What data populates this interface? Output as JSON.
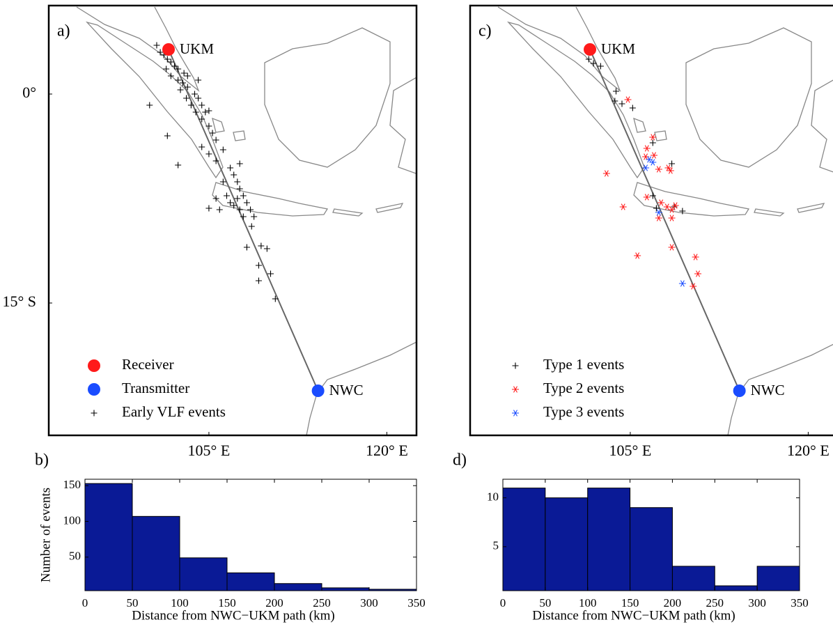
{
  "chart_data": [
    {
      "type": "map",
      "panel_label": "a)",
      "xlim": [
        91.5,
        122.5
      ],
      "ylim": [
        -24.5,
        6.35
      ],
      "xticks": [
        {
          "value": 105,
          "label": "105° E"
        },
        {
          "value": 120,
          "label": "120° E"
        }
      ],
      "yticks": [
        {
          "value": 0,
          "label": "0°"
        },
        {
          "value": -15,
          "label": "15° S"
        }
      ],
      "legend": "lower left",
      "series": [
        {
          "name": "Receiver",
          "marker": "circle",
          "color": "#ff1a1a",
          "labels": [
            "UKM"
          ],
          "x": [
            101.6
          ],
          "y": [
            3.2
          ]
        },
        {
          "name": "Transmitter",
          "marker": "circle",
          "color": "#1a4cff",
          "labels": [
            "NWC"
          ],
          "x": [
            114.2
          ],
          "y": [
            -21.3
          ]
        },
        {
          "name": "Early VLF events",
          "marker": "plus",
          "color": "#000000",
          "x": [
            100.6,
            100.9,
            101.2,
            101.5,
            101.8,
            102.1,
            102.4,
            102.9,
            103.2,
            101.4,
            101.8,
            102.4,
            102.8,
            103.2,
            103.8,
            104.1,
            104.4,
            104.7,
            102.6,
            103.1,
            103.5,
            103.9,
            104.4,
            105.0,
            105.3,
            105.6,
            101.5,
            102.4,
            100.0,
            104.4,
            105.0,
            105.6,
            106.2,
            106.8,
            107.1,
            107.4,
            107.6,
            106.2,
            106.5,
            106.8,
            107.4,
            107.9,
            108.2,
            108.5,
            107.6,
            107.1,
            105.9,
            105.0,
            105.6,
            108.8,
            108.6,
            108.2,
            109.4,
            109.9,
            109.2,
            110.2,
            109.2,
            110.6,
            107.9,
            104.1,
            105.0,
            107.6
          ],
          "y": [
            3.5,
            3.0,
            2.8,
            2.5,
            2.3,
            2.0,
            1.8,
            1.5,
            1.3,
            1.8,
            1.3,
            1.0,
            0.8,
            0.5,
            0.0,
            -0.3,
            -0.8,
            -1.3,
            0.3,
            -0.3,
            -0.8,
            -1.3,
            -1.8,
            -2.3,
            -2.8,
            -3.3,
            -3.0,
            -5.1,
            -0.8,
            -3.8,
            -4.3,
            -4.8,
            -4.0,
            -5.3,
            -5.8,
            -6.3,
            -6.8,
            -6.3,
            -7.3,
            -7.8,
            -7.5,
            -7.3,
            -7.8,
            -8.3,
            -8.3,
            -8.0,
            -8.3,
            -8.2,
            -7.5,
            -8.8,
            -9.5,
            -11.0,
            -10.9,
            -11.1,
            -12.3,
            -12.9,
            -13.4,
            -14.7,
            -8.8,
            1.0,
            -1.2,
            -5.0
          ]
        }
      ]
    },
    {
      "type": "histogram",
      "panel_label": "b)",
      "bins": [
        0,
        50,
        100,
        150,
        200,
        250,
        300,
        350
      ],
      "counts": [
        153,
        107,
        49,
        28,
        13,
        7,
        5
      ],
      "color": "#0a1a96",
      "xlim": [
        0,
        350
      ],
      "ylim": [
        3,
        159
      ],
      "xticks": [
        0,
        50,
        100,
        150,
        200,
        250,
        300,
        350
      ],
      "yticks": [
        50,
        100,
        150
      ],
      "xlabel": "Distance from NWC−UKM path (km)",
      "ylabel": "Number of events"
    },
    {
      "type": "map",
      "panel_label": "c)",
      "xlim": [
        91.5,
        122.5
      ],
      "ylim": [
        -24.5,
        6.35
      ],
      "xticks": [
        {
          "value": 105,
          "label": "105° E"
        },
        {
          "value": 120,
          "label": "120° E"
        }
      ],
      "legend": "lower left",
      "series": [
        {
          "marker": "circle",
          "color": "#ff1a1a",
          "labels": [
            "UKM"
          ],
          "x": [
            101.6
          ],
          "y": [
            3.2
          ]
        },
        {
          "marker": "circle",
          "color": "#1a4cff",
          "labels": [
            "NWC"
          ],
          "x": [
            114.2
          ],
          "y": [
            -21.3
          ]
        },
        {
          "name": "Type 1 events",
          "marker": "plus",
          "color": "#000000",
          "x": [
            101.5,
            101.9,
            102.5,
            103.8,
            103.7,
            104.3,
            105.2,
            106.9,
            108.5,
            106.9,
            107.2,
            108.7,
            109.4
          ],
          "y": [
            2.5,
            2.2,
            2.0,
            0.2,
            -0.5,
            -0.7,
            -1.0,
            -3.5,
            -5.0,
            -7.3,
            -8.2,
            -8.1,
            -8.4
          ]
        },
        {
          "name": "Type 2 events",
          "marker": "asterisk",
          "color": "#ff1a1a",
          "x": [
            104.8,
            106.9,
            106.4,
            106.3,
            107.0,
            107.4,
            108.2,
            108.4,
            103.0,
            106.4,
            107.6,
            108.1,
            108.5,
            108.8,
            104.4,
            107.4,
            108.5,
            108.5,
            105.6,
            110.5,
            110.7,
            110.3
          ],
          "y": [
            -0.4,
            -3.1,
            -3.9,
            -4.5,
            -4.4,
            -5.4,
            -5.3,
            -5.5,
            -5.7,
            -7.4,
            -7.8,
            -8.1,
            -8.3,
            -8.0,
            -8.1,
            -8.9,
            -8.9,
            -11.0,
            -11.6,
            -11.7,
            -12.9,
            -13.8
          ]
        },
        {
          "name": "Type 3 events",
          "marker": "asterisk",
          "color": "#1a4cff",
          "x": [
            106.3,
            106.9,
            106.6,
            107.4,
            109.4
          ],
          "y": [
            -5.3,
            -4.9,
            -4.7,
            -8.5,
            -13.6
          ]
        }
      ]
    },
    {
      "type": "histogram",
      "panel_label": "d)",
      "bins": [
        0,
        50,
        100,
        150,
        200,
        250,
        300,
        350
      ],
      "counts": [
        11,
        10,
        11,
        9,
        3,
        1,
        3
      ],
      "color": "#0a1a96",
      "xlim": [
        0,
        350
      ],
      "ylim": [
        0.5,
        11.9
      ],
      "xticks": [
        0,
        50,
        100,
        150,
        200,
        250,
        300,
        350
      ],
      "yticks": [
        5,
        10
      ],
      "xlabel": "Distance from NWC−UKM path (km)"
    }
  ]
}
